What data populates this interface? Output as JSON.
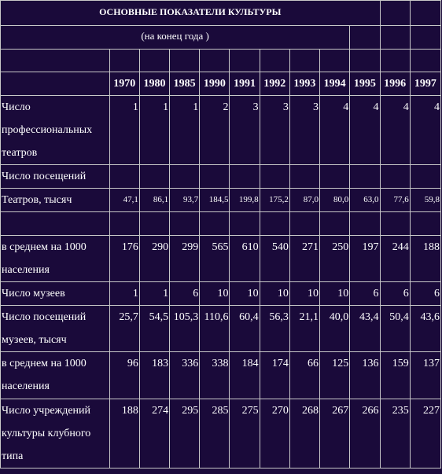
{
  "title": "ОСНОВНЫЕ ПОКАЗАТЕЛИ КУЛЬТУРЫ",
  "subtitle": "(на конец года )",
  "years": [
    "1970",
    "1980",
    "1985",
    "1990",
    "1991",
    "1992",
    "1993",
    "1994",
    "1995",
    "1996",
    "1997"
  ],
  "rows": {
    "theaters": {
      "label": "Число профессиональных театров",
      "values": [
        "1",
        "1",
        "1",
        "2",
        "3",
        "3",
        "3",
        "4",
        "4",
        "4",
        "4"
      ]
    },
    "visits_header": {
      "label": "Число посещений"
    },
    "theater_visits": {
      "label": "Театров, тысяч",
      "values": [
        "47,1",
        "86,1",
        "93,7",
        "184,5",
        "199,8",
        "175,2",
        "87,0",
        "80,0",
        "63,0",
        "77,6",
        "59,8"
      ]
    },
    "theater_per_1000": {
      "label": "в среднем на 1000 населения",
      "values": [
        "176",
        "290",
        "299",
        "565",
        "610",
        "540",
        "271",
        "250",
        "197",
        "244",
        "188"
      ]
    },
    "museums": {
      "label": "Число музеев",
      "values": [
        "1",
        "1",
        "6",
        "10",
        "10",
        "10",
        "10",
        "10",
        "6",
        "6",
        "6"
      ]
    },
    "museum_visits": {
      "label": "Число посещений музеев,  тысяч",
      "values": [
        "25,7",
        "54,5",
        "105,3",
        "110,6",
        "60,4",
        "56,3",
        "21,1",
        "40,0",
        "43,4",
        "50,4",
        "43,6"
      ]
    },
    "museum_per_1000": {
      "label": "в среднем на 1000 населения",
      "values": [
        "96",
        "183",
        "336",
        "338",
        "184",
        "174",
        "66",
        "125",
        "136",
        "159",
        "137"
      ]
    },
    "clubs": {
      "label": "Число учреждений культуры клубного типа",
      "values": [
        "188",
        "274",
        "295",
        "285",
        "275",
        "270",
        "268",
        "267",
        "266",
        "235",
        "227"
      ]
    }
  }
}
